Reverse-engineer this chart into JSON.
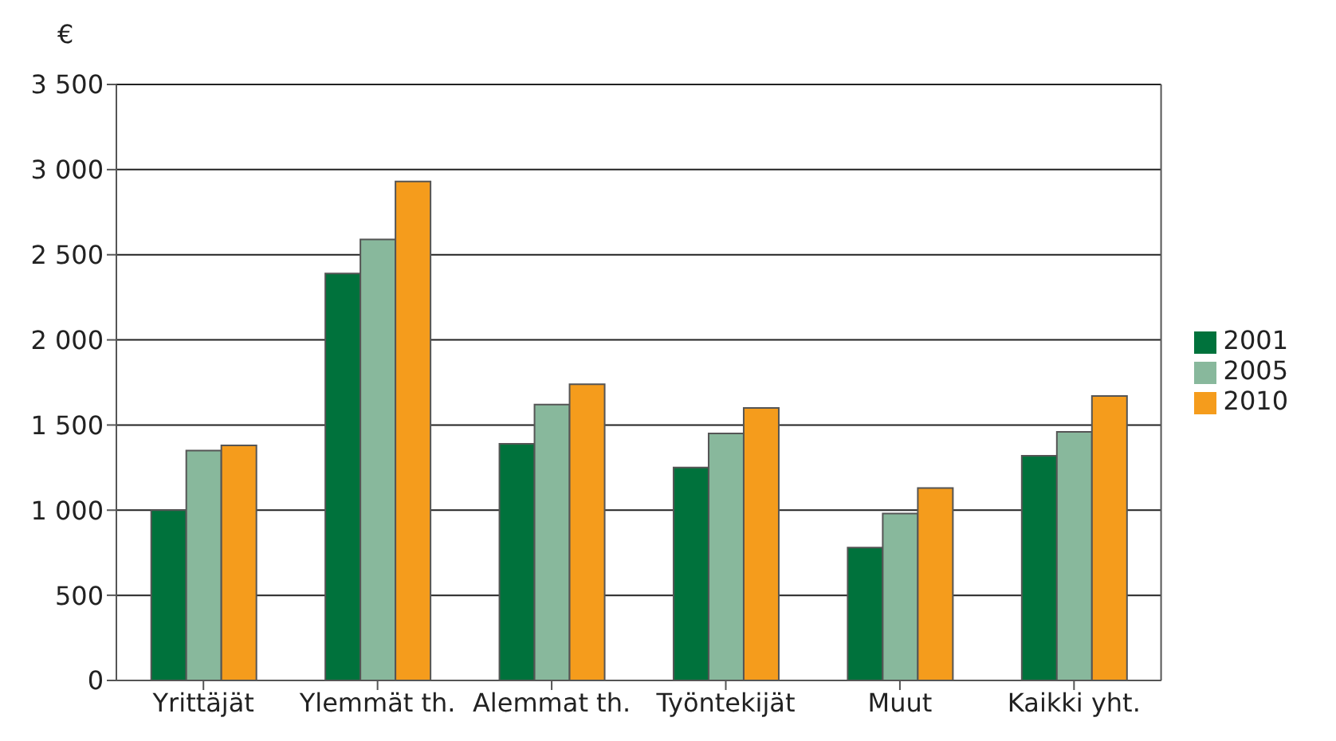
{
  "chart_data": {
    "type": "bar",
    "ylabel": "€",
    "categories": [
      "Yrittäjät",
      "Ylemmät th.",
      "Alemmat th.",
      "Työntekijät",
      "Muut",
      "Kaikki yht."
    ],
    "series": [
      {
        "name": "2001",
        "color": "#00723c",
        "values": [
          1000,
          2390,
          1390,
          1250,
          780,
          1320
        ]
      },
      {
        "name": "2005",
        "color": "#88b89c",
        "values": [
          1350,
          2590,
          1620,
          1450,
          980,
          1460
        ]
      },
      {
        "name": "2010",
        "color": "#f59c1c",
        "values": [
          1380,
          2930,
          1740,
          1600,
          1130,
          1670
        ]
      }
    ],
    "ylim": [
      0,
      3500
    ],
    "yticks": [
      {
        "value": 0,
        "label": "0"
      },
      {
        "value": 500,
        "label": "500"
      },
      {
        "value": 1000,
        "label": "1 000"
      },
      {
        "value": 1500,
        "label": "1 500"
      },
      {
        "value": 2000,
        "label": "2 000"
      },
      {
        "value": 2500,
        "label": "2 500"
      },
      {
        "value": 3000,
        "label": "3 000"
      },
      {
        "value": 3500,
        "label": "3 500"
      }
    ],
    "grid": "y",
    "legend": "right"
  }
}
